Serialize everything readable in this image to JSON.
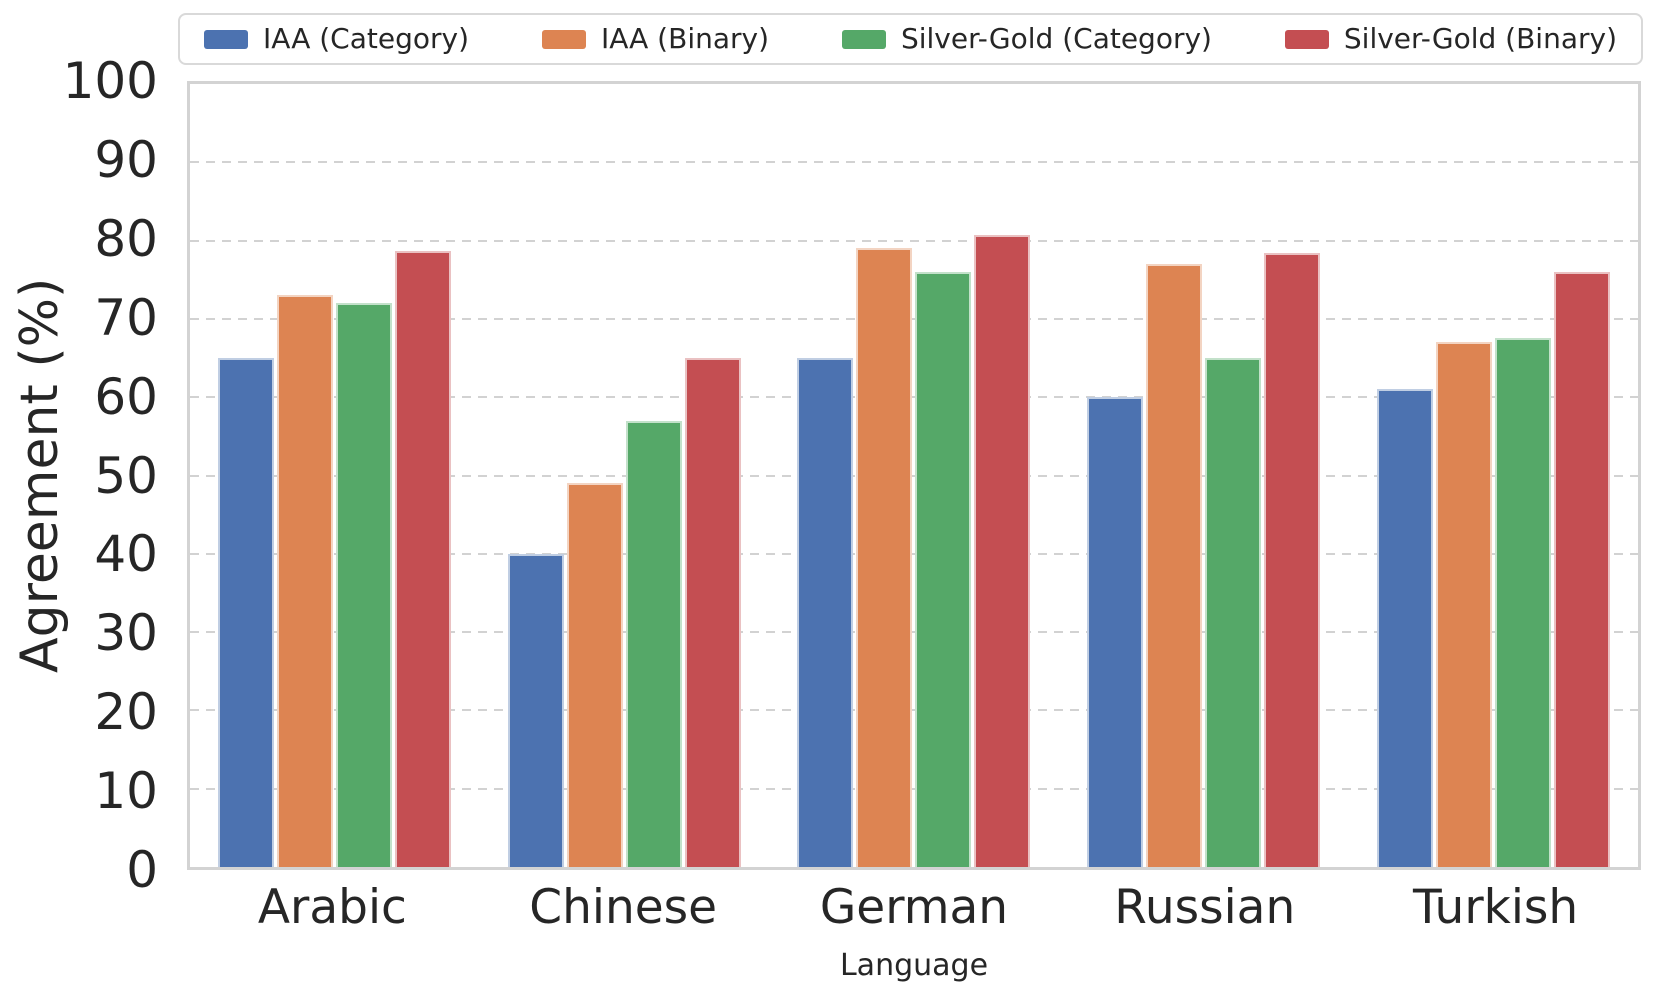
{
  "figure": {
    "background_color": "#ffffff",
    "text_color": "#262626",
    "spine_color": "#d3d3d3",
    "grid_color": "#d2d2d2",
    "bar_edge_color": "rgba(255,255,255,0.65)"
  },
  "chart_data": {
    "type": "bar",
    "title": "",
    "xlabel": "Language",
    "ylabel": "Agreement (%)",
    "ylim": [
      0,
      100
    ],
    "yticks": [
      0,
      10,
      20,
      30,
      40,
      50,
      60,
      70,
      80,
      90,
      100
    ],
    "ytick_labels": [
      "0",
      "10",
      "20",
      "30",
      "40",
      "50",
      "60",
      "70",
      "80",
      "90",
      "100"
    ],
    "grid": "horizontal, dashed, on 10-unit intervals",
    "legend_position": "top, horizontal, 4 columns, framed",
    "categories": [
      "Arabic",
      "Chinese",
      "German",
      "Russian",
      "Turkish"
    ],
    "series": [
      {
        "name": "IAA (Category)",
        "color": "#4C72B0",
        "values": [
          65,
          40,
          65,
          60,
          61
        ]
      },
      {
        "name": "IAA (Binary)",
        "color": "#DD8452",
        "values": [
          73,
          49,
          79,
          77,
          67
        ]
      },
      {
        "name": "Silver-Gold (Category)",
        "color": "#55A868",
        "values": [
          72,
          57,
          76,
          65,
          67.5
        ]
      },
      {
        "name": "Silver-Gold (Binary)",
        "color": "#C44E52",
        "values": [
          78.7,
          65,
          80.7,
          78.4,
          76
        ]
      }
    ]
  }
}
